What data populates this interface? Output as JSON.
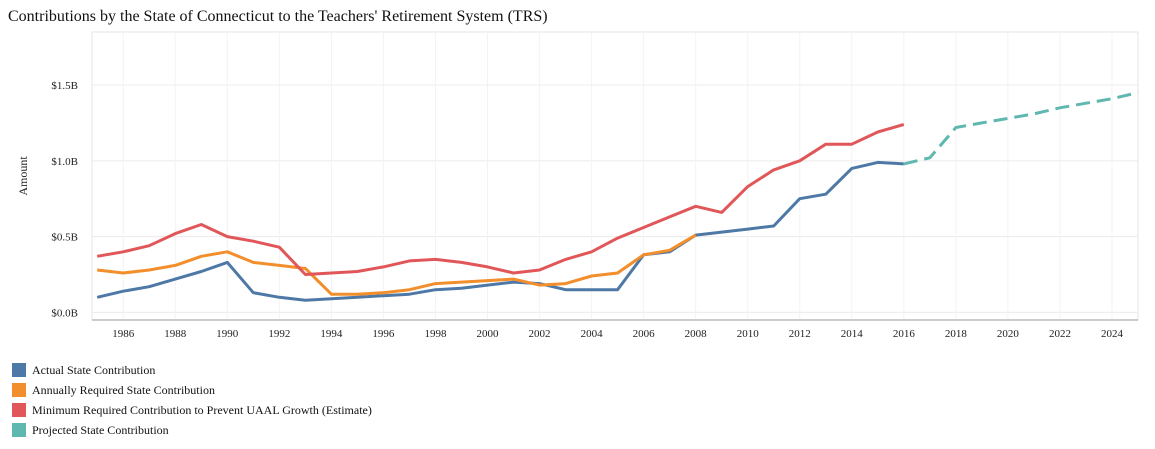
{
  "chart_data": {
    "type": "line",
    "title": "Contributions by the State of Connecticut to the Teachers' Retirement System (TRS)",
    "xlabel": "",
    "ylabel": "Amount",
    "xlim": [
      1984.8,
      2025.0
    ],
    "ylim": [
      -0.05,
      1.85
    ],
    "y_ticks": [
      {
        "value": 0.0,
        "label": "$0.0B"
      },
      {
        "value": 0.5,
        "label": "$0.5B"
      },
      {
        "value": 1.0,
        "label": "$1.0B"
      },
      {
        "value": 1.5,
        "label": "$1.5B"
      }
    ],
    "x_ticks": [
      1986,
      1988,
      1990,
      1992,
      1994,
      1996,
      1998,
      2000,
      2002,
      2004,
      2006,
      2008,
      2010,
      2012,
      2014,
      2016,
      2018,
      2020,
      2022,
      2024
    ],
    "grid": true,
    "legend_position": "bottom-left",
    "series": [
      {
        "name": "Actual State Contribution",
        "color": "#4e79a7",
        "dashed": false,
        "x": [
          1985,
          1986,
          1987,
          1988,
          1989,
          1990,
          1991,
          1992,
          1993,
          1994,
          1995,
          1996,
          1997,
          1998,
          1999,
          2000,
          2001,
          2002,
          2003,
          2004,
          2005,
          2006,
          2007,
          2008,
          2009,
          2010,
          2011,
          2012,
          2013,
          2014,
          2015,
          2016
        ],
        "y": [
          0.1,
          0.14,
          0.17,
          0.22,
          0.27,
          0.33,
          0.13,
          0.1,
          0.08,
          0.09,
          0.1,
          0.11,
          0.12,
          0.15,
          0.16,
          0.18,
          0.2,
          0.19,
          0.15,
          0.15,
          0.15,
          0.38,
          0.4,
          0.51,
          0.53,
          0.55,
          0.57,
          0.75,
          0.78,
          0.95,
          0.99,
          0.98
        ]
      },
      {
        "name": "Annually Required State Contribution",
        "color": "#f28e2b",
        "dashed": false,
        "x": [
          1985,
          1986,
          1987,
          1988,
          1989,
          1990,
          1991,
          1992,
          1993,
          1994,
          1995,
          1996,
          1997,
          1998,
          1999,
          2000,
          2001,
          2002,
          2003,
          2004,
          2005,
          2006,
          2007,
          2008
        ],
        "y": [
          0.28,
          0.26,
          0.28,
          0.31,
          0.37,
          0.4,
          0.33,
          0.31,
          0.29,
          0.12,
          0.12,
          0.13,
          0.15,
          0.19,
          0.2,
          0.21,
          0.22,
          0.18,
          0.19,
          0.24,
          0.26,
          0.38,
          0.41,
          0.51
        ]
      },
      {
        "name": "Minimum Required Contribution to Prevent UAAL Growth (Estimate)",
        "color": "#e15759",
        "dashed": false,
        "x": [
          1985,
          1986,
          1987,
          1988,
          1989,
          1990,
          1991,
          1992,
          1993,
          1994,
          1995,
          1996,
          1997,
          1998,
          1999,
          2000,
          2001,
          2002,
          2003,
          2004,
          2005,
          2006,
          2007,
          2008,
          2009,
          2010,
          2011,
          2012,
          2013,
          2014,
          2015,
          2016
        ],
        "y": [
          0.37,
          0.4,
          0.44,
          0.52,
          0.58,
          0.5,
          0.47,
          0.43,
          0.25,
          0.26,
          0.27,
          0.3,
          0.34,
          0.35,
          0.33,
          0.3,
          0.26,
          0.28,
          0.35,
          0.4,
          0.49,
          0.56,
          0.63,
          0.7,
          0.66,
          0.83,
          0.94,
          1.0,
          1.11,
          1.11,
          1.19,
          1.24
        ]
      },
      {
        "name": "Projected State Contribution",
        "color": "#5fb8b0",
        "dashed": true,
        "x": [
          2016,
          2017,
          2018,
          2019,
          2020,
          2021,
          2022,
          2023,
          2024,
          2025
        ],
        "y": [
          0.98,
          1.02,
          1.22,
          1.25,
          1.28,
          1.31,
          1.35,
          1.38,
          1.41,
          1.45
        ]
      }
    ]
  }
}
